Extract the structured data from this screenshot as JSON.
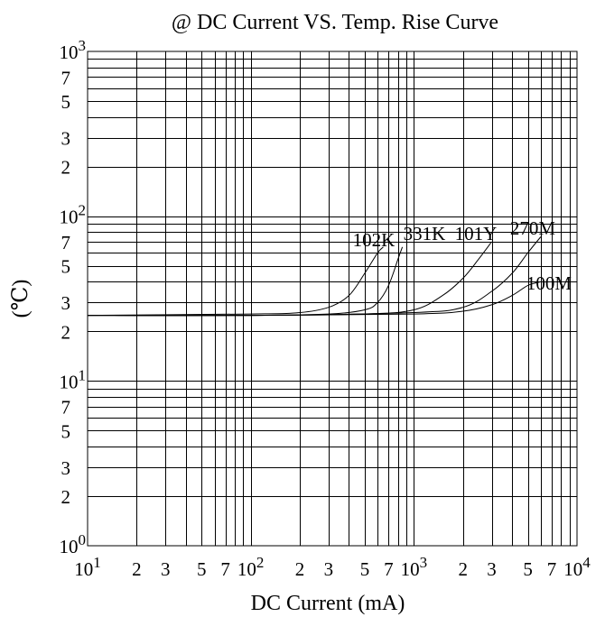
{
  "chart_data": {
    "type": "line",
    "title": "@ DC Current VS. Temp. Rise Curve",
    "xlabel": "DC Current (mA)",
    "ylabel": "(℃)",
    "xscale": "log",
    "yscale": "log",
    "xlim": [
      10,
      10000
    ],
    "ylim": [
      1,
      1000
    ],
    "grid": true,
    "x_ticks": [
      {
        "value": 10,
        "base": "10",
        "exp": "1"
      },
      {
        "value": 20,
        "label": "2"
      },
      {
        "value": 30,
        "label": "3"
      },
      {
        "value": 50,
        "label": "5"
      },
      {
        "value": 70,
        "label": "7"
      },
      {
        "value": 100,
        "base": "10",
        "exp": "2"
      },
      {
        "value": 200,
        "label": "2"
      },
      {
        "value": 300,
        "label": "3"
      },
      {
        "value": 500,
        "label": "5"
      },
      {
        "value": 700,
        "label": "7"
      },
      {
        "value": 1000,
        "base": "10",
        "exp": "3"
      },
      {
        "value": 2000,
        "label": "2"
      },
      {
        "value": 3000,
        "label": "3"
      },
      {
        "value": 5000,
        "label": "5"
      },
      {
        "value": 7000,
        "label": "7"
      },
      {
        "value": 10000,
        "base": "10",
        "exp": "4"
      }
    ],
    "y_ticks": [
      {
        "value": 1,
        "base": "10",
        "exp": "0"
      },
      {
        "value": 2,
        "label": "2"
      },
      {
        "value": 3,
        "label": "3"
      },
      {
        "value": 5,
        "label": "5"
      },
      {
        "value": 7,
        "label": "7"
      },
      {
        "value": 10,
        "base": "10",
        "exp": "1"
      },
      {
        "value": 20,
        "label": "2"
      },
      {
        "value": 30,
        "label": "3"
      },
      {
        "value": 50,
        "label": "5"
      },
      {
        "value": 70,
        "label": "7"
      },
      {
        "value": 100,
        "base": "10",
        "exp": "2"
      },
      {
        "value": 200,
        "label": "2"
      },
      {
        "value": 300,
        "label": "3"
      },
      {
        "value": 500,
        "label": "5"
      },
      {
        "value": 700,
        "label": "7"
      },
      {
        "value": 1000,
        "base": "10",
        "exp": "3"
      }
    ],
    "series": [
      {
        "name": "102K",
        "x": [
          10,
          100,
          200,
          300,
          400,
          500,
          600,
          650
        ],
        "y": [
          25,
          25.5,
          26,
          28,
          33,
          45,
          60,
          65
        ]
      },
      {
        "name": "331K",
        "x": [
          10,
          100,
          300,
          500,
          600,
          700,
          800,
          850
        ],
        "y": [
          25,
          25,
          25.5,
          27,
          30,
          38,
          55,
          65
        ]
      },
      {
        "name": "101Y",
        "x": [
          10,
          100,
          500,
          1000,
          1500,
          2000,
          2500,
          3000
        ],
        "y": [
          25,
          25,
          25.5,
          27,
          33,
          42,
          55,
          70
        ]
      },
      {
        "name": "270M",
        "x": [
          10,
          100,
          1000,
          2000,
          3000,
          4000,
          5000,
          6000
        ],
        "y": [
          25,
          25,
          26,
          28,
          35,
          45,
          60,
          75
        ]
      },
      {
        "name": "100M",
        "x": [
          10,
          100,
          1000,
          2000,
          3000,
          4000,
          5000,
          6000
        ],
        "y": [
          25,
          25,
          25.5,
          26.5,
          29,
          33,
          38,
          40
        ]
      }
    ]
  }
}
